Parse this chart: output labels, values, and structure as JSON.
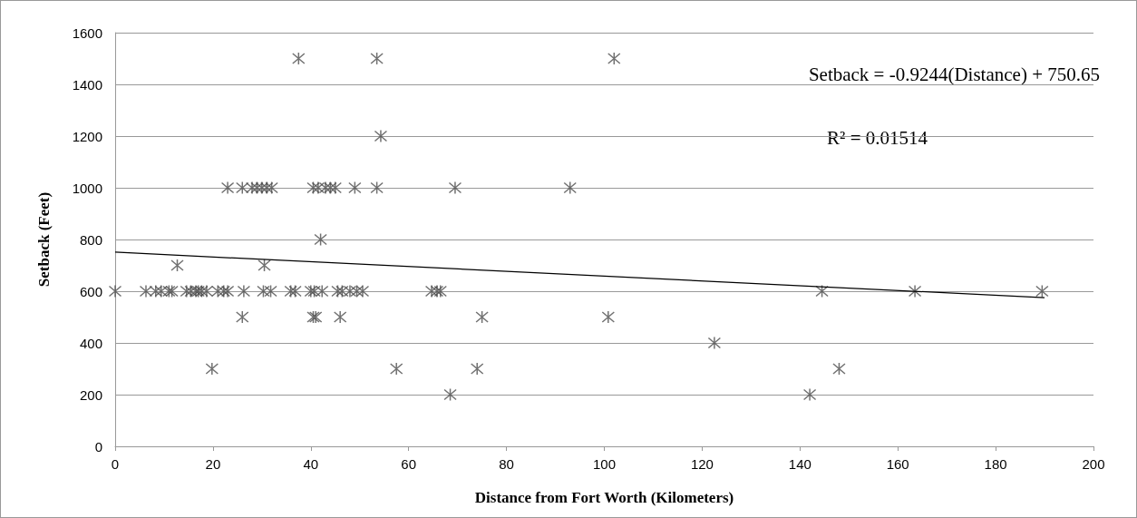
{
  "chart_data": {
    "type": "scatter",
    "xlabel": "Distance from Fort Worth (Kilometers)",
    "ylabel": "Setback (Feet)",
    "annotations": [
      "Setback = -0.9244(Distance) + 750.65",
      "R² = 0.01514"
    ],
    "xlim": [
      0,
      200
    ],
    "xticks": [
      0,
      20,
      40,
      60,
      80,
      100,
      120,
      140,
      160,
      180,
      200
    ],
    "ylim": [
      0,
      1600
    ],
    "yticks": [
      0,
      200,
      400,
      600,
      800,
      1000,
      1200,
      1400,
      1600
    ],
    "grid": "y",
    "marker": "cross",
    "series": [
      {
        "color": "#4d4d4d",
        "x": [
          0,
          6.3,
          8.3,
          9.4,
          11,
          11.6,
          14.6,
          15.5,
          16.5,
          17,
          17.7,
          18.7,
          21,
          22.2,
          23,
          26.3,
          30.3,
          31.8,
          35.9,
          36.8,
          40,
          40.7,
          42.3,
          45.5,
          46.4,
          48,
          49.4,
          50.6,
          64.7,
          65.8,
          66.5,
          144.5,
          163.5,
          189.5,
          23,
          26,
          28,
          29,
          30,
          31,
          32,
          40.5,
          41.5,
          43,
          44,
          45,
          49,
          53.5,
          69.5,
          93,
          37.5,
          53.5,
          102,
          54.3,
          42,
          12.7,
          30.5,
          26,
          40.5,
          41,
          46,
          75,
          100.8,
          122.5,
          19.8,
          57.5,
          74,
          148,
          68.5,
          142
        ],
        "values": [
          600,
          600,
          600,
          600,
          600,
          600,
          600,
          600,
          600,
          600,
          600,
          600,
          600,
          600,
          600,
          600,
          600,
          600,
          600,
          600,
          600,
          600,
          600,
          600,
          600,
          600,
          600,
          600,
          600,
          600,
          600,
          600,
          600,
          600,
          1000,
          1000,
          1000,
          1000,
          1000,
          1000,
          1000,
          1000,
          1000,
          1000,
          1000,
          1000,
          1000,
          1000,
          1000,
          1000,
          1500,
          1500,
          1500,
          1200,
          800,
          700,
          700,
          500,
          500,
          500,
          500,
          500,
          500,
          400,
          300,
          300,
          300,
          300,
          200,
          200
        ]
      },
      {
        "type": "line",
        "marker": "none",
        "color": "#000000",
        "x": [
          0,
          190
        ],
        "values": [
          751,
          575
        ]
      }
    ]
  }
}
